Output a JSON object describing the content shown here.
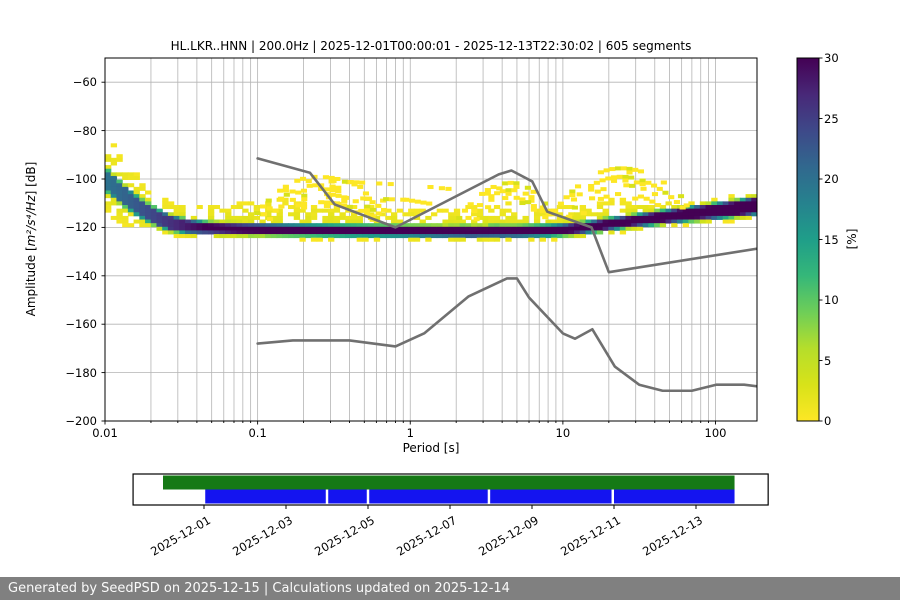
{
  "title": "HL.LKR..HNN | 200.0Hz | 2025-12-01T00:00:01 - 2025-12-13T22:30:02 | 605 segments",
  "footer": {
    "text": "Generated by SeedPSD on 2025-12-15 | Calculations updated on 2025-12-14",
    "bg": "#808080"
  },
  "chart_data": {
    "type": "heatmap",
    "title": "HL.LKR..HNN | 200.0Hz | 2025-12-01T00:00:01 - 2025-12-13T22:30:02 | 605 segments",
    "xlabel": "Period [s]",
    "ylabel_prefix": "Amplitude [",
    "ylabel_math": "m²/s⁴/Hz",
    "ylabel_suffix": "] [dB]",
    "x_scale": "log",
    "xlim": [
      0.01,
      187
    ],
    "ylim": [
      -200,
      -50
    ],
    "grid": true,
    "grid_color": "#b4b4b4",
    "x_ticks": {
      "values": [
        0.01,
        0.1,
        1,
        10,
        100
      ],
      "labels": [
        "0.01",
        "0.1",
        "1",
        "10",
        "100"
      ]
    },
    "y_ticks": {
      "values": [
        -60,
        -80,
        -100,
        -120,
        -140,
        -160,
        -180,
        -200
      ],
      "labels": [
        "−60",
        "−80",
        "−100",
        "−120",
        "−140",
        "−160",
        "−180",
        "−200"
      ]
    },
    "colorbar": {
      "label": "[%]",
      "vmin": 0,
      "vmax": 30,
      "ticks": [
        0,
        5,
        10,
        15,
        20,
        25,
        30
      ],
      "colormap": "viridis_r",
      "stops": [
        [
          0,
          "#440154"
        ],
        [
          0.1,
          "#482878"
        ],
        [
          0.2,
          "#3e4989"
        ],
        [
          0.3,
          "#31688e"
        ],
        [
          0.4,
          "#26828e"
        ],
        [
          0.5,
          "#1f9e89"
        ],
        [
          0.6,
          "#35b779"
        ],
        [
          0.7,
          "#6ece58"
        ],
        [
          0.8,
          "#b5de2b"
        ],
        [
          0.9,
          "#d8e219"
        ],
        [
          1,
          "#fde725"
        ]
      ]
    },
    "histogram": {
      "mode_db": [
        [
          0.0105,
          -101
        ],
        [
          0.0125,
          -105.5
        ],
        [
          0.015,
          -109.5
        ],
        [
          0.018,
          -113
        ],
        [
          0.022,
          -116
        ],
        [
          0.027,
          -118.3
        ],
        [
          0.035,
          -119.6
        ],
        [
          0.05,
          -120.3
        ],
        [
          0.08,
          -120.7
        ],
        [
          0.15,
          -121
        ],
        [
          0.4,
          -121.3
        ],
        [
          1,
          -121.5
        ],
        [
          2.5,
          -121.7
        ],
        [
          5,
          -121.6
        ],
        [
          8,
          -121.3
        ],
        [
          10,
          -121
        ],
        [
          13,
          -120.3
        ],
        [
          17,
          -119.3
        ],
        [
          22,
          -118.3
        ],
        [
          30,
          -117.2
        ],
        [
          45,
          -115.8
        ],
        [
          70,
          -114.3
        ],
        [
          100,
          -113.2
        ],
        [
          140,
          -112.2
        ],
        [
          187,
          -111
        ]
      ],
      "upper_env_db": [
        [
          0.0105,
          -84.5
        ],
        [
          0.0125,
          -89
        ],
        [
          0.015,
          -95
        ],
        [
          0.018,
          -102
        ],
        [
          0.022,
          -108.5
        ],
        [
          0.03,
          -110
        ],
        [
          0.05,
          -110.5
        ],
        [
          0.09,
          -109.5
        ],
        [
          0.15,
          -108.5
        ],
        [
          0.25,
          -109.5
        ],
        [
          0.4,
          -111
        ],
        [
          0.7,
          -112.5
        ],
        [
          1.2,
          -113
        ],
        [
          2,
          -112.5
        ],
        [
          3,
          -111.5
        ],
        [
          4.5,
          -110
        ],
        [
          6.5,
          -111.5
        ],
        [
          9,
          -112
        ],
        [
          13,
          -110.5
        ],
        [
          20,
          -109
        ],
        [
          35,
          -108
        ],
        [
          60,
          -110
        ],
        [
          90,
          -109.5
        ],
        [
          130,
          -107.5
        ],
        [
          187,
          -104.5
        ]
      ],
      "lower_env_db": [
        [
          0.0105,
          -116
        ],
        [
          0.013,
          -118.5
        ],
        [
          0.016,
          -120.5
        ],
        [
          0.02,
          -122
        ],
        [
          0.03,
          -123
        ],
        [
          0.06,
          -123.5
        ],
        [
          0.12,
          -123.5
        ],
        [
          0.3,
          -124
        ],
        [
          0.8,
          -124.3
        ],
        [
          2,
          -124.6
        ],
        [
          4,
          -124.4
        ],
        [
          7,
          -123.8
        ],
        [
          10,
          -123.2
        ],
        [
          15,
          -122.3
        ],
        [
          22,
          -121.3
        ],
        [
          35,
          -120
        ],
        [
          55,
          -118.5
        ],
        [
          85,
          -117
        ],
        [
          120,
          -115.8
        ],
        [
          187,
          -113.5
        ]
      ],
      "max_pct": [
        [
          0.0105,
          20
        ],
        [
          0.015,
          22
        ],
        [
          0.02,
          24
        ],
        [
          0.03,
          27
        ],
        [
          0.045,
          30
        ],
        [
          0.1,
          30
        ],
        [
          187,
          30
        ]
      ],
      "core_halfwidth_db": [
        [
          0.0105,
          3.5
        ],
        [
          0.02,
          2.5
        ],
        [
          0.05,
          1.1
        ],
        [
          1,
          1.0
        ],
        [
          10,
          1.1
        ],
        [
          30,
          1.3
        ],
        [
          80,
          1.8
        ],
        [
          187,
          2.4
        ]
      ]
    },
    "outlier_arcs": [
      {
        "p0": 0.095,
        "pk": 0.235,
        "p1": 0.8,
        "top": -99,
        "edge": -114
      },
      {
        "p0": 0.105,
        "pk": 0.235,
        "p1": 0.7,
        "top": -102.5,
        "edge": -114.5
      },
      {
        "p0": 0.115,
        "pk": 0.24,
        "p1": 0.62,
        "top": -106,
        "edge": -115
      },
      {
        "p0": 0.125,
        "pk": 0.24,
        "p1": 0.55,
        "top": -109.5,
        "edge": -115.5
      },
      {
        "p0": 2.0,
        "pk": 4.4,
        "p1": 8.5,
        "top": -101.5,
        "edge": -116
      },
      {
        "p0": 2.3,
        "pk": 4.4,
        "p1": 8.0,
        "top": -104.5,
        "edge": -116
      },
      {
        "p0": 2.6,
        "pk": 4.4,
        "p1": 7.5,
        "top": -107.5,
        "edge": -116.5
      },
      {
        "p0": 8.5,
        "pk": 23,
        "p1": 70,
        "top": -95.5,
        "edge": -113
      },
      {
        "p0": 9.5,
        "pk": 23,
        "p1": 62,
        "top": -99,
        "edge": -113.5
      },
      {
        "p0": 10.5,
        "pk": 24,
        "p1": 55,
        "top": -102.5,
        "edge": -114
      },
      {
        "p0": 12,
        "pk": 24,
        "p1": 48,
        "top": -106,
        "edge": -114.5
      }
    ],
    "outlier_streaks": [
      {
        "pts": [
          [
            0.3,
            -100.8
          ],
          [
            1.0,
            -102.5
          ],
          [
            1.7,
            -104
          ],
          [
            2.2,
            -111
          ]
        ]
      },
      {
        "pts": [
          [
            0.28,
            -107.5
          ],
          [
            0.9,
            -108.5
          ],
          [
            1.4,
            -110.5
          ]
        ]
      }
    ],
    "noise_models": {
      "color": "#707070",
      "nhnm": [
        [
          0.1,
          -91.5
        ],
        [
          0.22,
          -97.4
        ],
        [
          0.32,
          -110.5
        ],
        [
          0.8,
          -120
        ],
        [
          3.8,
          -98.1
        ],
        [
          4.6,
          -96.5
        ],
        [
          6.3,
          -101
        ],
        [
          7.9,
          -113.5
        ],
        [
          15.4,
          -120
        ],
        [
          20,
          -138.5
        ],
        [
          354.8,
          -126
        ]
      ],
      "nlnm": [
        [
          0.1,
          -168
        ],
        [
          0.17,
          -166.7
        ],
        [
          0.4,
          -166.7
        ],
        [
          0.8,
          -169.2
        ],
        [
          1.24,
          -163.7
        ],
        [
          2.4,
          -148.6
        ],
        [
          4.3,
          -141.1
        ],
        [
          5,
          -141.1
        ],
        [
          6,
          -149
        ],
        [
          10,
          -163.8
        ],
        [
          12,
          -166
        ],
        [
          15.6,
          -162.1
        ],
        [
          21.9,
          -177.5
        ],
        [
          31.6,
          -185
        ],
        [
          45,
          -187.5
        ],
        [
          70,
          -187.5
        ],
        [
          101,
          -185
        ],
        [
          154,
          -185
        ],
        [
          328,
          -187.5
        ]
      ]
    }
  },
  "timeline": {
    "tick_labels": [
      "2025-12-01",
      "2025-12-03",
      "2025-12-05",
      "2025-12-07",
      "2025-12-09",
      "2025-12-11",
      "2025-12-13"
    ],
    "tick_days": [
      0,
      2,
      4,
      6,
      8,
      10,
      12
    ],
    "box_days": [
      -1.73,
      13.76
    ],
    "green_bar": {
      "color": "#157915",
      "span_days": [
        -1.0,
        12.94
      ]
    },
    "blue_bar": {
      "color": "#1414f0",
      "segments_days": [
        [
          0.03,
          2.97
        ],
        [
          3.03,
          3.97
        ],
        [
          4.03,
          6.92
        ],
        [
          6.98,
          9.94
        ],
        [
          10.0,
          12.94
        ]
      ]
    }
  }
}
